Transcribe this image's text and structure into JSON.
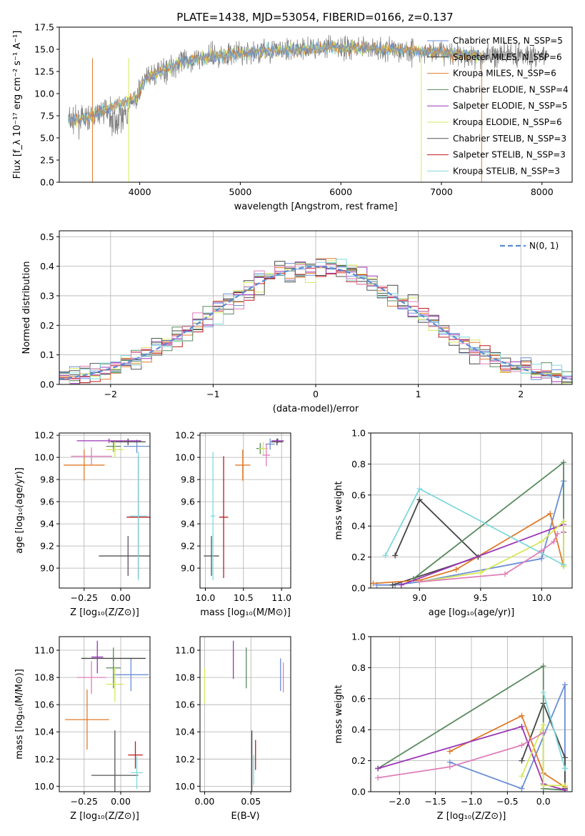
{
  "title": "PLATE=1438, MJD=53054, FIBERID=0166, z=0.137",
  "models": [
    {
      "name": "Chabrier MILES, Nₛₛₚ=5",
      "label": "Chabrier MILES, N_SSP=5",
      "color": "#6a8ed6"
    },
    {
      "name": "Salpeter MILES, N_SSP=6",
      "label": "Salpeter MILES, N_SSP=6",
      "color": "#444444"
    },
    {
      "name": "Kroupa MILES, N_SSP=6",
      "label": "Kroupa MILES, N_SSP=6",
      "color": "#e07b2b"
    },
    {
      "name": "Chabrier ELODIE, N_SSP=4",
      "label": "Chabrier ELODIE, N_SSP=4",
      "color": "#5a8a5e"
    },
    {
      "name": "Salpeter ELODIE, N_SSP=5",
      "label": "Salpeter ELODIE, N_SSP=5",
      "color": "#9b35b5"
    },
    {
      "name": "Kroupa ELODIE, N_SSP=6",
      "label": "Kroupa ELODIE, N_SSP=6",
      "color": "#d6e85a"
    },
    {
      "name": "Chabrier STELIB, N_SSP=3",
      "label": "Chabrier STELIB, N_SSP=3",
      "color": "#555555"
    },
    {
      "name": "Salpeter STELIB, N_SSP=3",
      "label": "Salpeter STELIB, N_SSP=3",
      "color": "#c01a1a"
    },
    {
      "name": "Kroupa STELIB, N_SSP=3",
      "label": "Kroupa STELIB, N_SSP=3",
      "color": "#7fd8dc"
    }
  ],
  "chart_data": [
    {
      "type": "line",
      "panel": "spectrum",
      "xlabel": "wavelength [Angstrom, rest frame]",
      "ylabel": "Flux [f_λ 10⁻¹⁷ erg cm⁻² s⁻¹ A⁻¹]",
      "xlim": [
        3200,
        8300
      ],
      "ylim": [
        0,
        17.5
      ],
      "xticks": [
        4000,
        5000,
        6000,
        7000,
        8000
      ],
      "yticks": [
        0.0,
        2.5,
        5.0,
        7.5,
        10.0,
        12.5,
        15.0,
        17.5
      ],
      "continuum": {
        "x": [
          3290,
          3500,
          3700,
          3850,
          3950,
          4050,
          4200,
          4400,
          4700,
          5000,
          5300,
          5600,
          5900,
          6200,
          6500,
          6800,
          7000,
          7200,
          7500
        ],
        "y": [
          7.0,
          7.2,
          8.5,
          9.0,
          9.3,
          11.5,
          12.5,
          13.5,
          14.2,
          14.5,
          14.8,
          15.0,
          15.2,
          15.2,
          15.0,
          14.8,
          14.6,
          14.4,
          14.3
        ]
      },
      "data_range": [
        3290,
        8050
      ],
      "model_range": [
        3290,
        7400
      ]
    },
    {
      "type": "step",
      "panel": "residual_histogram",
      "xlabel": "(data-model)/error",
      "ylabel": "Normed distribution",
      "xlim": [
        -2.5,
        2.5
      ],
      "ylim": [
        0,
        0.52
      ],
      "xticks": [
        -2,
        -1,
        0,
        1,
        2
      ],
      "yticks": [
        0.0,
        0.1,
        0.2,
        0.3,
        0.4,
        0.5
      ],
      "reference_label": "N(0, 1)",
      "bin_width": 0.1
    },
    {
      "type": "errorbar",
      "panel": "Z_vs_age",
      "xlabel": "Z [log₁₀(Z/Z⊙)]",
      "ylabel": "age  [log₁₀(age/yr)]",
      "xlim": [
        -0.42,
        0.2
      ],
      "ylim": [
        8.82,
        10.22
      ],
      "xticks": [
        -0.25,
        0.0
      ],
      "yticks": [
        9.0,
        9.2,
        9.4,
        9.6,
        9.8,
        10.0,
        10.2
      ],
      "points": [
        {
          "series": 0,
          "x": 0.11,
          "xerr": 0.09,
          "y": 10.1,
          "yerr": 0.06
        },
        {
          "series": 1,
          "x": 0.05,
          "xerr": 0.12,
          "y": 10.14,
          "yerr": 0.03
        },
        {
          "series": 2,
          "x": -0.25,
          "xerr": 0.14,
          "y": 9.93,
          "yerr": 0.14
        },
        {
          "series": 3,
          "x": -0.05,
          "xerr": 0.05,
          "y": 10.1,
          "yerr": 0.05
        },
        {
          "series": 4,
          "x": -0.08,
          "xerr": 0.22,
          "y": 10.15,
          "yerr": 0.02
        },
        {
          "series": 5,
          "x": -0.04,
          "xerr": 0.06,
          "y": 10.07,
          "yerr": 0.07
        },
        {
          "series": 6,
          "x": 0.05,
          "xerr": 0.2,
          "y": 9.11,
          "yerr": 0.18
        },
        {
          "series": 7,
          "x": 0.12,
          "xerr": 0.08,
          "y": 9.46,
          "yerr": 0.55
        },
        {
          "series": 8,
          "x": 0.12,
          "xerr": 0.06,
          "y": 9.47,
          "yerr": 0.58
        },
        {
          "series": "pink",
          "x": -0.2,
          "xerr": 0.14,
          "y": 10.01,
          "yerr": 0.08
        }
      ]
    },
    {
      "type": "errorbar",
      "panel": "mass_vs_age",
      "xlabel": "mass [log₁₀(M/M⊙)]",
      "ylabel": "",
      "xlim": [
        9.93,
        11.12
      ],
      "ylim": [
        8.82,
        10.22
      ],
      "xticks": [
        10.0,
        10.5,
        11.0
      ],
      "yticks": [
        9.0,
        9.2,
        9.4,
        9.6,
        9.8,
        10.0,
        10.2
      ],
      "points": [
        {
          "series": 0,
          "x": 10.85,
          "xerr": 0.06,
          "y": 10.12,
          "yerr": 0.05
        },
        {
          "series": 1,
          "x": 10.94,
          "xerr": 0.08,
          "y": 10.14,
          "yerr": 0.03
        },
        {
          "series": 2,
          "x": 10.49,
          "xerr": 0.1,
          "y": 9.93,
          "yerr": 0.14
        },
        {
          "series": 3,
          "x": 10.72,
          "xerr": 0.05,
          "y": 10.08,
          "yerr": 0.05
        },
        {
          "series": 4,
          "x": 10.95,
          "xerr": 0.08,
          "y": 10.15,
          "yerr": 0.02
        },
        {
          "series": 5,
          "x": 10.76,
          "xerr": 0.06,
          "y": 10.08,
          "yerr": 0.06
        },
        {
          "series": 6,
          "x": 10.08,
          "xerr": 0.1,
          "y": 9.11,
          "yerr": 0.18
        },
        {
          "series": 7,
          "x": 10.24,
          "xerr": 0.06,
          "y": 9.46,
          "yerr": 0.55
        },
        {
          "series": 8,
          "x": 10.1,
          "xerr": 0.03,
          "y": 9.47,
          "yerr": 0.58
        },
        {
          "series": "pink",
          "x": 10.8,
          "xerr": 0.05,
          "y": 10.02,
          "yerr": 0.1
        }
      ]
    },
    {
      "type": "line",
      "panel": "age_vs_massweight",
      "xlabel": "age  [log₁₀(age/yr)]",
      "ylabel": "mass weight",
      "xlim": [
        8.6,
        10.25
      ],
      "ylim": [
        0,
        1.0
      ],
      "xticks": [
        9.0,
        9.5,
        10.0
      ],
      "yticks": [
        0.0,
        0.2,
        0.4,
        0.6,
        0.8,
        1.0
      ],
      "series": [
        {
          "series": 0,
          "x": [
            8.65,
            8.8,
            9.0,
            10.0,
            10.18
          ],
          "y": [
            0.02,
            0.02,
            0.04,
            0.19,
            0.69
          ]
        },
        {
          "series": 1,
          "x": [
            8.8,
            9.0,
            9.48,
            8.78
          ],
          "y": [
            0.21,
            0.57,
            0.2,
            0.02
          ]
        },
        {
          "series": 2,
          "x": [
            8.62,
            9.0,
            9.3,
            10.07,
            10.18
          ],
          "y": [
            0.03,
            0.05,
            0.12,
            0.48,
            0.14
          ]
        },
        {
          "series": 3,
          "x": [
            8.95,
            10.18,
            10.18
          ],
          "y": [
            0.06,
            0.81,
            0.15
          ]
        },
        {
          "series": 4,
          "x": [
            8.85,
            10.18,
            10.18
          ],
          "y": [
            0.02,
            0.41,
            0.36
          ]
        },
        {
          "series": 5,
          "x": [
            9.0,
            9.5,
            10.0,
            10.18,
            10.18
          ],
          "y": [
            0.04,
            0.1,
            0.3,
            0.43,
            0.14
          ]
        },
        {
          "series": 8,
          "x": [
            8.72,
            9.0,
            10.18
          ],
          "y": [
            0.21,
            0.64,
            0.15
          ]
        },
        {
          "series": "pink",
          "x": [
            9.0,
            9.7,
            10.0,
            10.1,
            10.13
          ],
          "y": [
            0.04,
            0.09,
            0.24,
            0.3,
            0.35
          ]
        }
      ]
    },
    {
      "type": "errorbar",
      "panel": "Z_vs_mass",
      "xlabel": "Z [log₁₀(Z/Z⊙)]",
      "ylabel": "mass [log₁₀(M/M⊙)]",
      "xlim": [
        -0.42,
        0.2
      ],
      "ylim": [
        9.96,
        11.1
      ],
      "xticks": [
        -0.25,
        0.0
      ],
      "yticks": [
        10.0,
        10.2,
        10.4,
        10.6,
        10.8,
        11.0
      ],
      "points": [
        {
          "series": 0,
          "x": 0.07,
          "xerr": 0.12,
          "y": 10.82,
          "yerr": 0.12
        },
        {
          "series": 1,
          "x": -0.05,
          "xerr": 0.22,
          "y": 10.94,
          "yerr": 0.02
        },
        {
          "series": 2,
          "x": -0.23,
          "xerr": 0.15,
          "y": 10.49,
          "yerr": 0.22
        },
        {
          "series": 3,
          "x": -0.05,
          "xerr": 0.05,
          "y": 10.87,
          "yerr": 0.15
        },
        {
          "series": 4,
          "x": -0.16,
          "xerr": 0.04,
          "y": 10.95,
          "yerr": 0.12
        },
        {
          "series": 5,
          "x": -0.04,
          "xerr": 0.06,
          "y": 10.75,
          "yerr": 0.13
        },
        {
          "series": 6,
          "x": -0.04,
          "xerr": 0.16,
          "y": 10.08,
          "yerr": 0.33
        },
        {
          "series": 7,
          "x": 0.1,
          "xerr": 0.05,
          "y": 10.23,
          "yerr": 0.1
        },
        {
          "series": 8,
          "x": 0.11,
          "xerr": 0.04,
          "y": 10.1,
          "yerr": 0.12
        },
        {
          "series": "pink",
          "x": -0.2,
          "xerr": 0.1,
          "y": 10.8,
          "yerr": 0.12
        }
      ]
    },
    {
      "type": "errorbar",
      "panel": "EBV_vs_mass",
      "xlabel": "E(B-V)",
      "ylabel": "",
      "xlim": [
        -0.005,
        0.093
      ],
      "ylim": [
        9.96,
        11.1
      ],
      "xticks": [
        0.0,
        0.05
      ],
      "yticks": [
        10.0,
        10.2,
        10.4,
        10.6,
        10.8,
        11.0
      ],
      "points": [
        {
          "series": 0,
          "x": 0.082,
          "xerr": 0,
          "y": 10.82,
          "yerr": 0.12
        },
        {
          "series": 1,
          "x": 0.051,
          "xerr": 0,
          "y": 10.18,
          "yerr": 0.23
        },
        {
          "series": 2,
          "x": 0.094,
          "xerr": 0,
          "y": 10.5,
          "yerr": 0.22
        },
        {
          "series": 3,
          "x": 0.045,
          "xerr": 0,
          "y": 10.87,
          "yerr": 0.15
        },
        {
          "series": 4,
          "x": 0.031,
          "xerr": 0,
          "y": 10.93,
          "yerr": 0.14
        },
        {
          "series": 5,
          "x": 0.0,
          "xerr": 0,
          "y": 10.74,
          "yerr": 0.13
        },
        {
          "series": 7,
          "x": 0.055,
          "xerr": 0,
          "y": 10.23,
          "yerr": 0.11
        },
        {
          "series": 8,
          "x": 0.053,
          "xerr": 0,
          "y": 10.12,
          "yerr": 0.11
        },
        {
          "series": "pink",
          "x": 0.085,
          "xerr": 0,
          "y": 10.8,
          "yerr": 0.11
        }
      ]
    },
    {
      "type": "line",
      "panel": "Z_vs_massweight",
      "xlabel": "Z [log₁₀(Z/Z⊙)]",
      "ylabel": "mass weight",
      "xlim": [
        -2.4,
        0.4
      ],
      "ylim": [
        0,
        1.0
      ],
      "xticks": [
        -2.0,
        -1.5,
        -1.0,
        -0.5,
        0.0
      ],
      "yticks": [
        0.0,
        0.2,
        0.4,
        0.6,
        0.8,
        1.0
      ],
      "series": [
        {
          "series": 0,
          "x": [
            -1.3,
            -0.3,
            0.3,
            0.3
          ],
          "y": [
            0.19,
            0.02,
            0.69,
            0.02
          ]
        },
        {
          "series": 1,
          "x": [
            -0.3,
            0.0,
            0.3,
            0.3
          ],
          "y": [
            0.2,
            0.57,
            0.22,
            0.02
          ]
        },
        {
          "series": 2,
          "x": [
            -1.3,
            -0.3,
            0.0,
            0.3
          ],
          "y": [
            0.26,
            0.49,
            0.12,
            0.03
          ]
        },
        {
          "series": 3,
          "x": [
            -2.3,
            0.0,
            0.0,
            0.3
          ],
          "y": [
            0.15,
            0.81,
            0.02,
            0.01
          ]
        },
        {
          "series": 4,
          "x": [
            -2.3,
            -0.3,
            0.0,
            0.3
          ],
          "y": [
            0.15,
            0.42,
            0.05,
            0.01
          ]
        },
        {
          "series": 5,
          "x": [
            -0.3,
            0.0,
            0.0,
            0.3
          ],
          "y": [
            0.1,
            0.43,
            0.04,
            0.04
          ]
        },
        {
          "series": 8,
          "x": [
            0.0,
            0.3,
            0.3
          ],
          "y": [
            0.64,
            0.15,
            0.15
          ]
        },
        {
          "series": "pink",
          "x": [
            -2.3,
            -1.3,
            -0.3,
            0.0
          ],
          "y": [
            0.09,
            0.16,
            0.3,
            0.38
          ]
        }
      ]
    }
  ]
}
